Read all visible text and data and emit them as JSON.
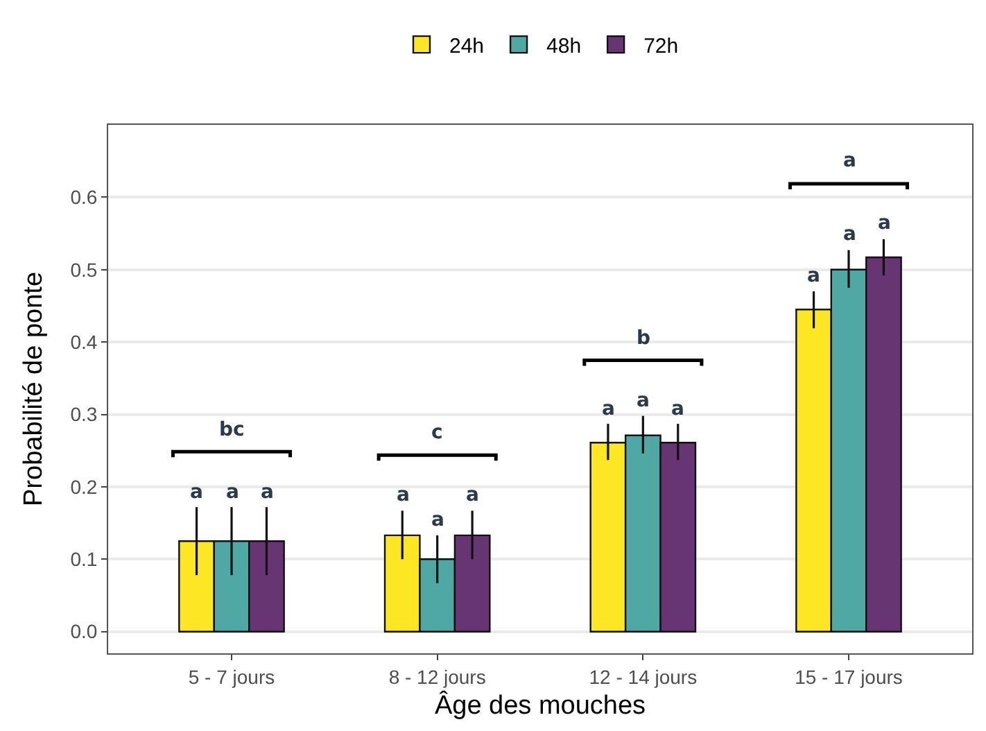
{
  "chart_data": {
    "type": "bar",
    "xlabel": "Âge des mouches",
    "ylabel": "Probabilité de ponte",
    "categories": [
      "5 - 7 jours",
      "8 - 12 jours",
      "12 - 14 jours",
      "15 - 17 jours"
    ],
    "series": [
      {
        "name": "24h",
        "color": "#fde725",
        "values": [
          0.125,
          0.133,
          0.261,
          0.445
        ],
        "errors": [
          0.047,
          [
            0.1,
            0.167
          ],
          [
            0.237,
            0.287
          ],
          [
            0.419,
            0.47
          ]
        ],
        "value_labels": [
          "a",
          "a",
          "a",
          "a"
        ]
      },
      {
        "name": "48h",
        "color": "#4fa8a3",
        "values": [
          0.125,
          0.1,
          0.271,
          0.5
        ],
        "errors": [
          0.047,
          [
            0.067,
            0.133
          ],
          [
            0.246,
            0.298
          ],
          [
            0.475,
            0.527
          ]
        ],
        "value_labels": [
          "a",
          "a",
          "a",
          "a"
        ]
      },
      {
        "name": "72h",
        "color": "#673572",
        "values": [
          0.125,
          0.133,
          0.261,
          0.517
        ],
        "errors": [
          0.047,
          [
            0.1,
            0.167
          ],
          [
            0.237,
            0.287
          ],
          [
            0.492,
            0.542
          ]
        ],
        "value_labels": [
          "a",
          "a",
          "a",
          "a"
        ]
      }
    ],
    "annotations": [
      "bc",
      "c",
      "b",
      "a"
    ],
    "ylim": [
      -0.03,
      0.7
    ],
    "yticks": [
      {
        "value": 0,
        "label": "0.0"
      },
      0.1,
      0.2,
      0.3,
      0.4,
      0.5,
      0.6
    ],
    "grid": "y",
    "legend": "top"
  }
}
